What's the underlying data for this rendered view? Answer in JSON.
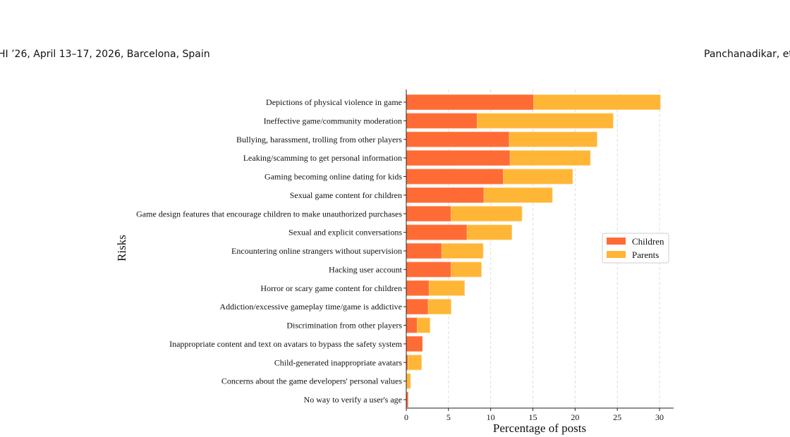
{
  "header": {
    "left": "HI ’26, April 13–17, 2026, Barcelona, Spain",
    "right": "Panchanadikar, et a"
  },
  "chart_data": {
    "type": "bar",
    "orientation": "horizontal",
    "stacked": true,
    "xlabel": "Percentage of posts",
    "ylabel": "Risks",
    "xlim": [
      0,
      31.5
    ],
    "xticks": [
      "0",
      "5",
      "10",
      "15",
      "20",
      "25",
      "30"
    ],
    "grid": "vertical dashed",
    "legend_placement": "center-right",
    "categories": [
      "Depictions of physical violence in game",
      "Ineffective game/community moderation",
      "Bullying, harassment, trolling from other players",
      "Leaking/scamming to get personal information",
      "Gaming becoming online dating for kids",
      "Sexual game content for children",
      "Game design features that encourage children to make unauthorized purchases",
      "Sexual and explicit conversations",
      "Encountering online strangers without supervision",
      "Hacking user account",
      "Horror or scary game content for children",
      "Addiction/excessive gameplay time/game is addictive",
      "Discrimination from other players",
      "Inappropriate content and text on avatars to bypass the safety system",
      "Child-generated inappropriate avatars",
      "Concerns about the game developers' personal values",
      "No way to verify a user's age"
    ],
    "series": [
      {
        "name": "Children",
        "color": "#FF6B35",
        "values": [
          15.1,
          8.4,
          12.2,
          12.3,
          11.5,
          9.2,
          5.3,
          7.2,
          4.2,
          5.3,
          2.7,
          2.6,
          1.3,
          1.9,
          0.2,
          0.0,
          0.2
        ]
      },
      {
        "name": "Parents",
        "color": "#FFB535",
        "values": [
          15.0,
          16.1,
          10.4,
          9.5,
          8.2,
          8.1,
          8.4,
          5.3,
          4.9,
          3.6,
          4.2,
          2.7,
          1.5,
          0.0,
          1.6,
          0.5,
          0.0
        ]
      }
    ]
  }
}
